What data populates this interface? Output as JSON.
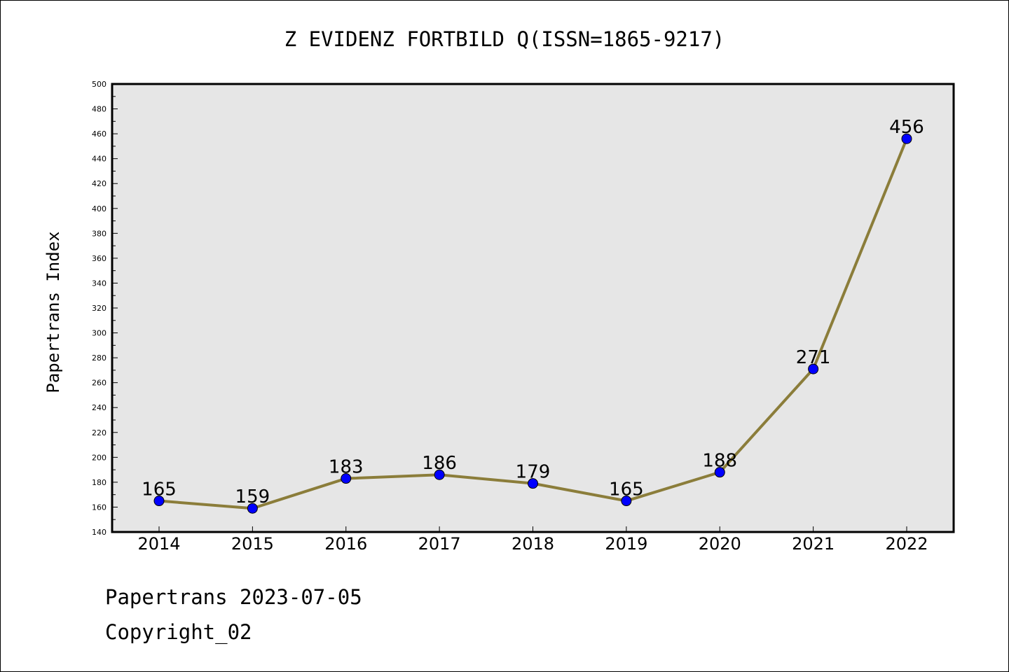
{
  "chart_data": {
    "type": "line",
    "title": "Z EVIDENZ FORTBILD Q(ISSN=1865-9217)",
    "xlabel": "",
    "ylabel": "Papertrans Index",
    "categories": [
      "2014",
      "2015",
      "2016",
      "2017",
      "2018",
      "2019",
      "2020",
      "2021",
      "2022"
    ],
    "values": [
      165,
      159,
      183,
      186,
      179,
      165,
      188,
      271,
      456
    ],
    "data_labels": [
      "165",
      "159",
      "183",
      "186",
      "179",
      "165",
      "188",
      "271",
      "456"
    ],
    "ylim": [
      140,
      500
    ],
    "yticks": [
      "140",
      "160",
      "180",
      "200",
      "220",
      "240",
      "260",
      "280",
      "300",
      "320",
      "340",
      "360",
      "380",
      "400",
      "420",
      "440",
      "460",
      "480",
      "500"
    ],
    "grid": false,
    "colors": {
      "line": "#8b7d3a",
      "marker": "#0000ff",
      "plot_bg": "#e6e6e6"
    }
  },
  "footer": {
    "line1": "Papertrans 2023-07-05",
    "line2": "Copyright_02"
  }
}
